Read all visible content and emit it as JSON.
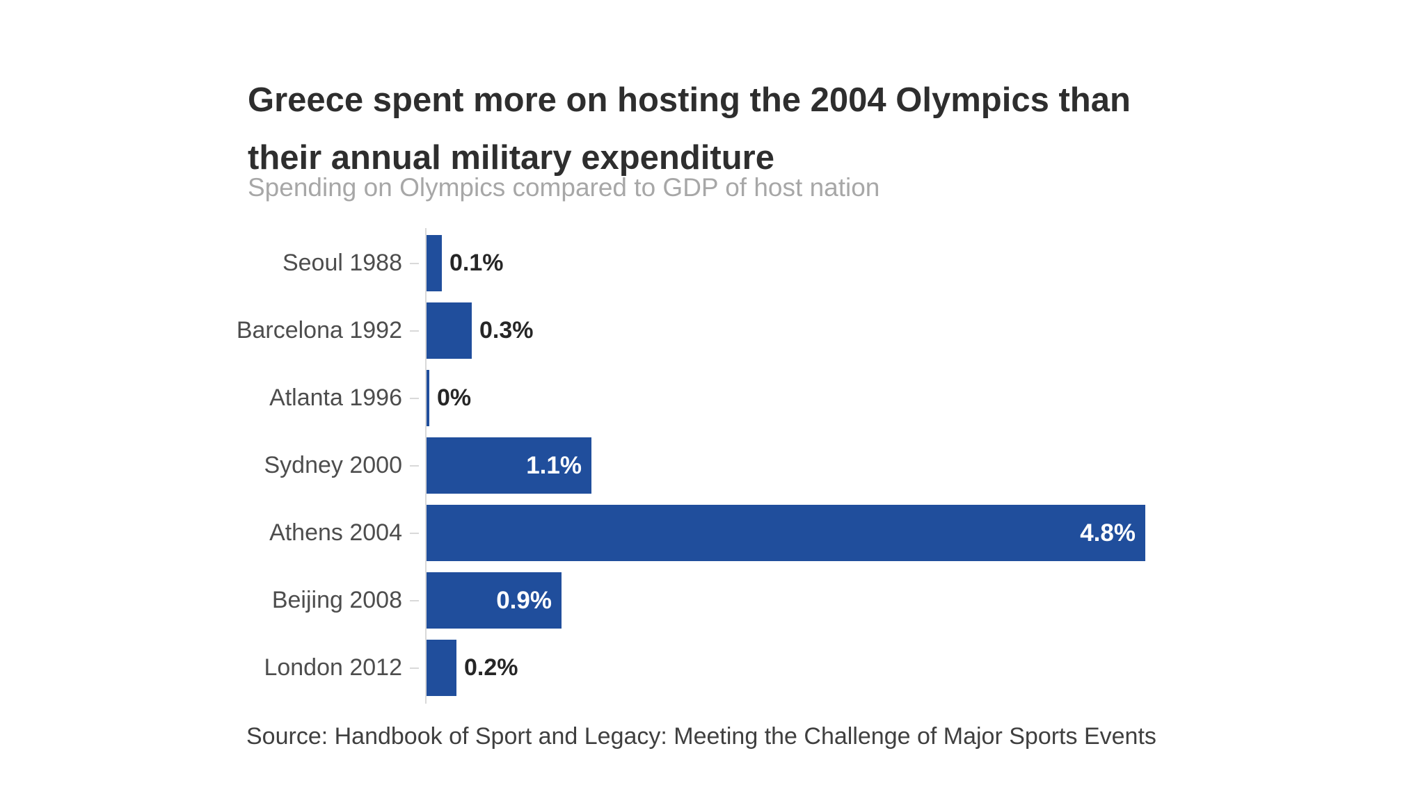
{
  "header": {
    "title_line1": "Greece spent more on hosting the 2004 Olympics than",
    "title_line2": "their annual military expenditure",
    "subtitle": "Spending on Olympics compared to GDP of host nation"
  },
  "footer": {
    "source": "Source: Handbook of Sport and Legacy: Meeting the Challenge of Major Sports Events"
  },
  "colors": {
    "bar": "#204e9c",
    "title": "#2e2e2e",
    "subtitle": "#a7a7a7",
    "label": "#4d4d4d",
    "value_outside": "#262626",
    "value_inside": "#ffffff",
    "axis": "#d9d9d9",
    "source": "#3f3f3f"
  },
  "chart_data": {
    "type": "bar",
    "orientation": "horizontal",
    "title": "Greece spent more on hosting the 2004 Olympics than their annual military expenditure",
    "subtitle": "Spending on Olympics compared to GDP of host nation",
    "categories": [
      "Seoul 1988",
      "Barcelona 1992",
      "Atlanta 1996",
      "Sydney 2000",
      "Athens 2004",
      "Beijing 2008",
      "London 2012"
    ],
    "values": [
      0.1,
      0.3,
      0,
      1.1,
      4.8,
      0.9,
      0.2
    ],
    "value_labels": [
      "0.1%",
      "0.3%",
      "0%",
      "1.1%",
      "4.8%",
      "0.9%",
      "0.2%"
    ],
    "unit": "%",
    "xlim": [
      0,
      4.8
    ],
    "grid": false,
    "legend": false,
    "source": "Source: Handbook of Sport and Legacy: Meeting the Challenge of Major Sports Events"
  }
}
